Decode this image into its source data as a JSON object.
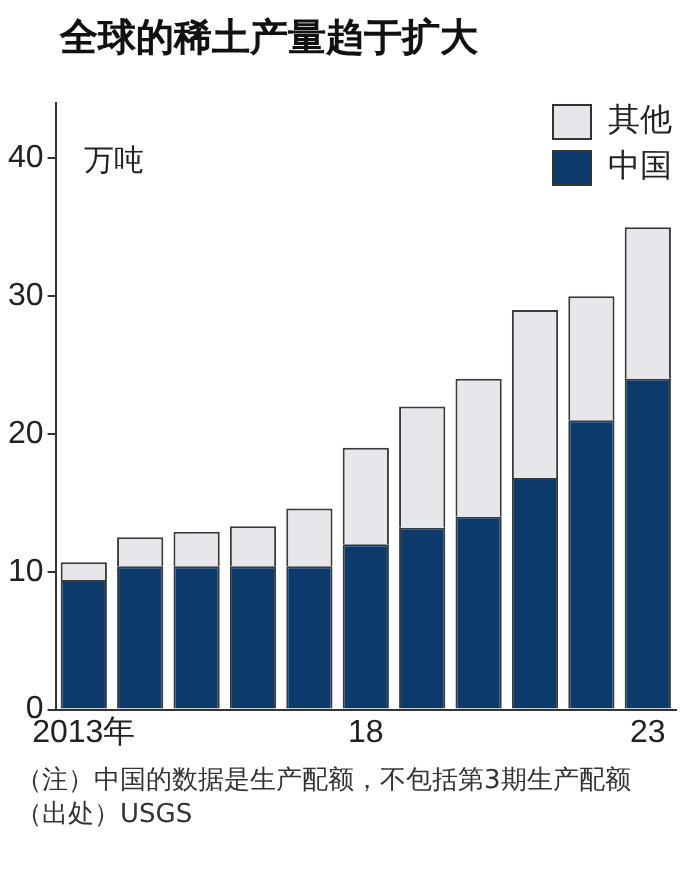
{
  "chart_data": {
    "type": "bar",
    "title": "全球的稀土产量趋于扩大",
    "ylabel": "万吨",
    "categories": [
      "2013年",
      null,
      null,
      null,
      null,
      "18",
      null,
      null,
      null,
      null,
      "23"
    ],
    "series": [
      {
        "name": "中国",
        "color": "#0b3a6b",
        "values": [
          9.4,
          10.4,
          10.4,
          10.4,
          10.4,
          12,
          13.2,
          14,
          16.8,
          21,
          24
        ]
      },
      {
        "name": "其他",
        "color": "#e6e7ea",
        "values": [
          1.3,
          2.1,
          2.5,
          2.9,
          4.2,
          7,
          8.8,
          10,
          12.2,
          9,
          11
        ]
      }
    ],
    "stacked": true,
    "ylim": [
      0,
      44
    ],
    "yticks": [
      0,
      10,
      20,
      30,
      40
    ],
    "grid": false,
    "legend": "top right",
    "annotations": [
      "（注）中国的数据是生产配额，不包括第3期生产配额",
      "（出处）USGS"
    ]
  }
}
